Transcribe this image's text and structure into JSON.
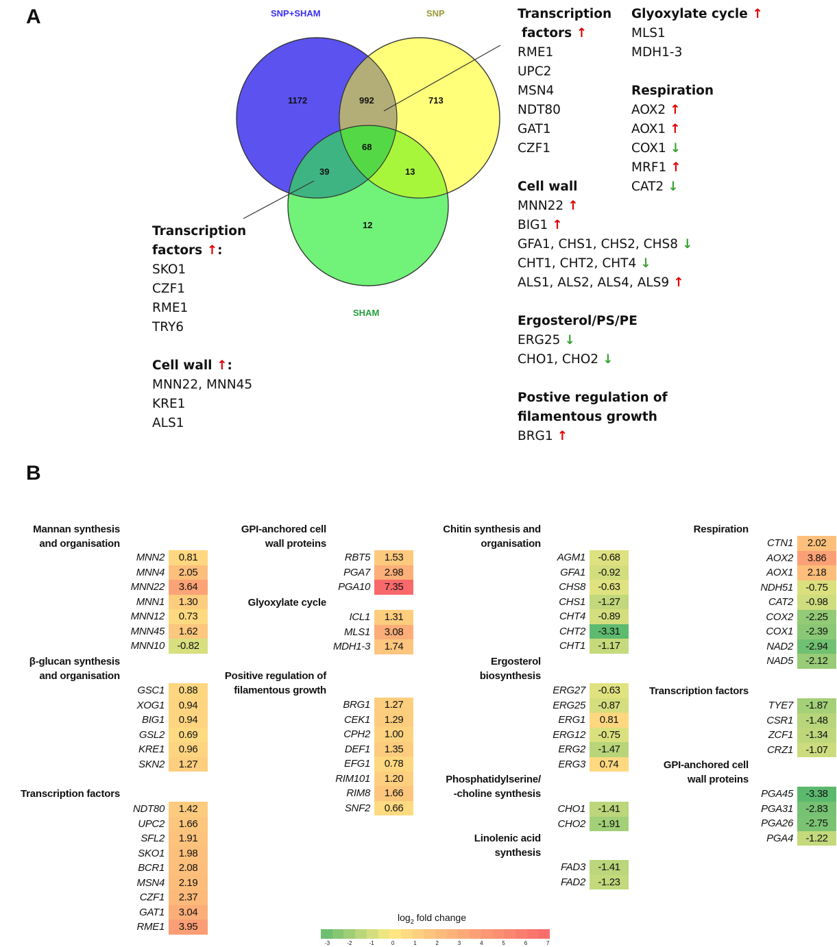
{
  "panelA": {
    "label": "A",
    "venn": {
      "set_labels": {
        "snp_sham": "SNP+SHAM",
        "snp": "SNP",
        "sham": "SHAM"
      },
      "counts": {
        "snp_sham_only": "1172",
        "snp_sham_snp": "992",
        "snp_only": "713",
        "all": "68",
        "snp_sham_sham": "39",
        "snp_sham2": "13",
        "sham_only": "12"
      },
      "colors": {
        "snp_sham": "#5b52f0",
        "snp": "#ffff70",
        "sham": "#66f16e"
      }
    },
    "left_ann": {
      "tf_title1": "Transcription",
      "tf_title2": "factors",
      "tf_suffix": ":",
      "tf_genes": [
        "SKO1",
        "CZF1",
        "RME1",
        "TRY6"
      ],
      "cw_title": "Cell wall",
      "cw_suffix": ":",
      "cw_genes": [
        "MNN22, MNN45",
        "KRE1",
        "ALS1"
      ]
    },
    "right_ann": {
      "tf_title1": "Transcription",
      "tf_title2": "factors",
      "tf_genes": [
        "RME1",
        "UPC2",
        "MSN4",
        "NDT80",
        "GAT1",
        "CZF1"
      ],
      "cw_title": "Cell wall",
      "cw_items": [
        {
          "text": "MNN22",
          "dir": "up"
        },
        {
          "text": "BIG1",
          "dir": "up"
        },
        {
          "text": "GFA1, CHS1, CHS2, CHS8",
          "dir": "down"
        },
        {
          "text": "CHT1, CHT2, CHT4",
          "dir": "down"
        },
        {
          "text": "ALS1, ALS2, ALS4, ALS9",
          "dir": "up"
        }
      ],
      "erg_title": "Ergosterol/PS/PE",
      "erg_items": [
        {
          "text": "ERG25",
          "dir": "down"
        },
        {
          "text": "CHO1, CHO2",
          "dir": "down"
        }
      ],
      "fil_title1": "Postive regulation of",
      "fil_title2": "filamentous growth",
      "fil_items": [
        {
          "text": "BRG1",
          "dir": "up"
        }
      ],
      "gly_title": "Glyoxylate cycle",
      "gly_genes": [
        "MLS1",
        "MDH1-3"
      ],
      "resp_title": "Respiration",
      "resp_items": [
        {
          "text": "AOX2",
          "dir": "up"
        },
        {
          "text": "AOX1",
          "dir": "up"
        },
        {
          "text": "COX1",
          "dir": "down"
        },
        {
          "text": "MRF1",
          "dir": "up"
        },
        {
          "text": "CAT2",
          "dir": "down"
        }
      ]
    },
    "arrows": {
      "up": "↑",
      "down": "↓"
    }
  },
  "panelB": {
    "label": "B",
    "groups": {
      "mannan": {
        "title": [
          "Mannan synthesis",
          "and organisation"
        ],
        "genes": [
          "MNN2",
          "MNN4",
          "MNN22",
          "MNN1",
          "MNN12",
          "MNN45",
          "MNN10"
        ],
        "values": [
          0.81,
          2.05,
          3.64,
          1.3,
          0.73,
          1.62,
          -0.82
        ]
      },
      "glucan": {
        "title": [
          "β-glucan synthesis",
          "and organisation"
        ],
        "genes": [
          "GSC1",
          "XOG1",
          "BIG1",
          "GSL2",
          "KRE1",
          "SKN2"
        ],
        "values": [
          0.88,
          0.94,
          0.94,
          0.69,
          0.96,
          1.27
        ]
      },
      "tf1": {
        "title": [
          "Transcription factors"
        ],
        "genes": [
          "NDT80",
          "UPC2",
          "SFL2",
          "SKO1",
          "BCR1",
          "MSN4",
          "CZF1",
          "GAT1",
          "RME1"
        ],
        "values": [
          1.42,
          1.66,
          1.91,
          1.98,
          2.08,
          2.19,
          2.37,
          3.04,
          3.95
        ]
      },
      "gpi1": {
        "title": [
          "GPI-anchored cell",
          "wall proteins"
        ],
        "genes": [
          "RBT5",
          "PGA7",
          "PGA10"
        ],
        "values": [
          1.53,
          2.98,
          7.35
        ]
      },
      "glyox": {
        "title": [
          "Glyoxylate cycle"
        ],
        "genes": [
          "ICL1",
          "MLS1",
          "MDH1-3"
        ],
        "values": [
          1.31,
          3.08,
          1.74
        ]
      },
      "filam": {
        "title": [
          "Positive regulation of",
          "filamentous growth"
        ],
        "genes": [
          "BRG1",
          "CEK1",
          "CPH2",
          "DEF1",
          "EFG1",
          "RIM101",
          "RIM8",
          "SNF2"
        ],
        "values": [
          1.27,
          1.29,
          1.0,
          1.35,
          0.78,
          1.2,
          1.66,
          0.66
        ]
      },
      "chitin": {
        "title": [
          "Chitin synthesis and",
          "organisation"
        ],
        "genes": [
          "AGM1",
          "GFA1",
          "CHS8",
          "CHS1",
          "CHT4",
          "CHT2",
          "CHT1"
        ],
        "values": [
          -0.68,
          -0.92,
          -0.63,
          -1.27,
          -0.89,
          -3.31,
          -1.17
        ]
      },
      "ergo": {
        "title": [
          "Ergosterol",
          "biosynthesis"
        ],
        "genes": [
          "ERG27",
          "ERG25",
          "ERG1",
          "ERG12",
          "ERG2",
          "ERG3"
        ],
        "values": [
          -0.63,
          -0.87,
          0.81,
          -0.75,
          -1.47,
          0.74
        ]
      },
      "phos": {
        "title": [
          "Phosphatidylserine/",
          "-choline synthesis"
        ],
        "genes": [
          "CHO1",
          "CHO2"
        ],
        "values": [
          -1.41,
          -1.91
        ]
      },
      "linol": {
        "title": [
          "Linolenic acid",
          "synthesis"
        ],
        "genes": [
          "FAD3",
          "FAD2"
        ],
        "values": [
          -1.41,
          -1.23
        ]
      },
      "resp": {
        "title": [
          "Respiration"
        ],
        "genes": [
          "CTN1",
          "AOX2",
          "AOX1",
          "NDH51",
          "CAT2",
          "COX2",
          "COX1",
          "NAD2",
          "NAD5"
        ],
        "values": [
          2.02,
          3.86,
          2.18,
          -0.75,
          -0.98,
          -2.25,
          -2.39,
          -2.94,
          -2.12
        ]
      },
      "tf2": {
        "title": [
          "Transcription factors"
        ],
        "genes": [
          "TYE7",
          "CSR1",
          "ZCF1",
          "CRZ1"
        ],
        "values": [
          -1.87,
          -1.48,
          -1.34,
          -1.07
        ]
      },
      "gpi2": {
        "title": [
          "GPI-anchored cell",
          "wall proteins"
        ],
        "genes": [
          "PGA45",
          "PGA31",
          "PGA26",
          "PGA4"
        ],
        "values": [
          -3.38,
          -2.83,
          -2.75,
          -1.22
        ]
      }
    },
    "legend": {
      "title_pre": "log",
      "title_sub": "2",
      "title_post": " fold change",
      "ticks": [
        "-3",
        "-2",
        "-1",
        "0",
        "1",
        "2",
        "3",
        "4",
        "5",
        "6",
        "7"
      ]
    }
  }
}
